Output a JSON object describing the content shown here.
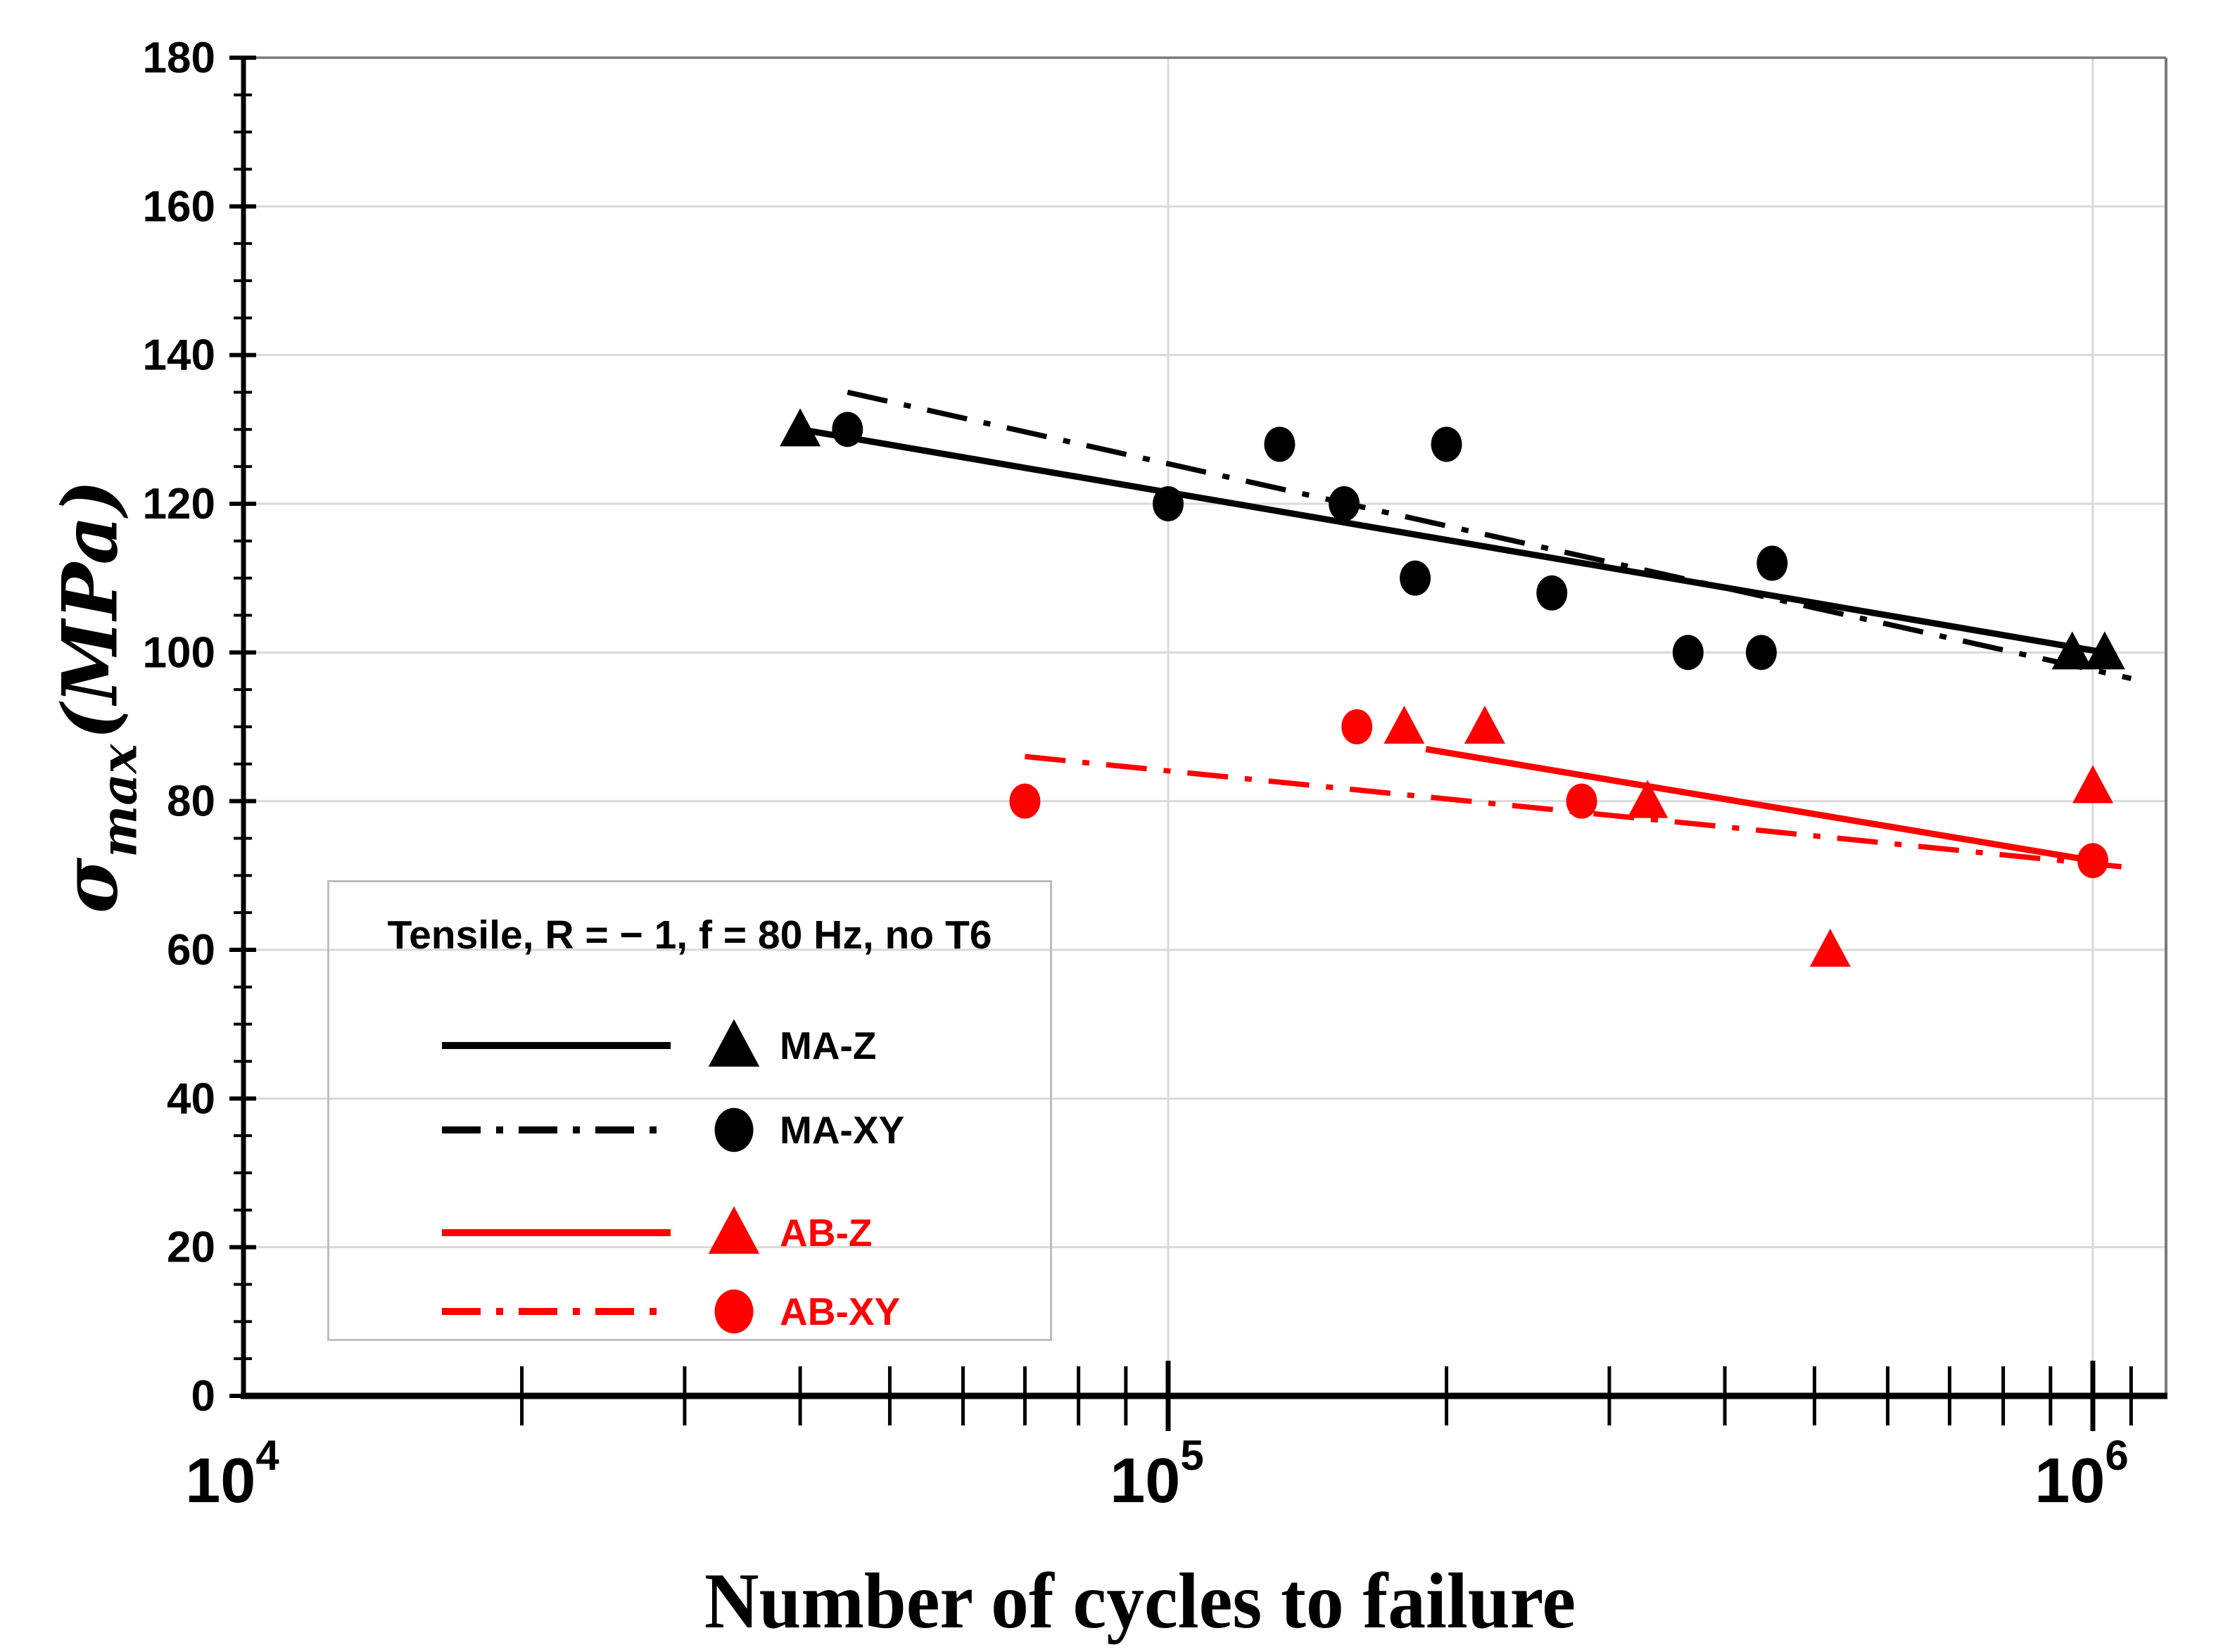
{
  "figure": {
    "x_axis_title": "Number of cycles to failure",
    "y_axis_title": {
      "sigma": "σ",
      "subscript": "max",
      "unit": "(MPa)"
    }
  },
  "legend": {
    "title": "Tensile, R = − 1, f = 80 Hz, no T6",
    "position": "lower-left",
    "transparent_background": true
  },
  "colors": {
    "black_series": "#000000",
    "red_series": "#ff0000",
    "gridline": "#d9d9d9",
    "spine_secondary": "#7a7a7a",
    "legend_border": "#bdbdbd"
  },
  "chart_data": {
    "type": "scatter",
    "x_scale": "log",
    "xlim": [
      10000,
      1200000
    ],
    "ylim": [
      0,
      180
    ],
    "y_major_step": 20,
    "y_minor_step": 5,
    "grid": {
      "y_values": [
        20,
        40,
        60,
        80,
        100,
        120,
        140,
        160
      ],
      "x_values": [
        100000,
        1000000
      ]
    },
    "y_tick_labels": [
      0,
      20,
      40,
      60,
      80,
      100,
      120,
      140,
      160,
      180
    ],
    "x_ticks": [
      {
        "value": 10000,
        "base": "10",
        "exp": "4"
      },
      {
        "value": 100000,
        "base": "10",
        "exp": "5"
      },
      {
        "value": 1000000,
        "base": "10",
        "exp": "6"
      }
    ],
    "xlabel": "Number of cycles to failure",
    "ylabel": "σmax (MPa)",
    "series": [
      {
        "name": "MA-Z",
        "color": "#000000",
        "marker": "triangle",
        "line": "solid",
        "points": [
          [
            40000,
            130
          ],
          [
            950000,
            100
          ],
          [
            1030000,
            100
          ]
        ],
        "fit_line": [
          [
            40000,
            130
          ],
          [
            1030000,
            100
          ]
        ]
      },
      {
        "name": "MA-XY",
        "color": "#000000",
        "marker": "circle",
        "line": "dashdot",
        "points": [
          [
            45000,
            130
          ],
          [
            100000,
            120
          ],
          [
            132000,
            128
          ],
          [
            155000,
            120
          ],
          [
            185000,
            110
          ],
          [
            200000,
            128
          ],
          [
            260000,
            108
          ],
          [
            365000,
            100
          ],
          [
            438000,
            100
          ],
          [
            450000,
            112
          ]
        ],
        "fit_line": [
          [
            45000,
            135
          ],
          [
            1100000,
            96.5
          ]
        ]
      },
      {
        "name": "AB-Z",
        "color": "#ff0000",
        "marker": "triangle",
        "line": "solid",
        "points": [
          [
            180000,
            90
          ],
          [
            220000,
            90
          ],
          [
            330000,
            80
          ],
          [
            520000,
            60
          ],
          [
            1000000,
            82
          ]
        ],
        "fit_line": [
          [
            190000,
            87
          ],
          [
            1000000,
            72
          ]
        ]
      },
      {
        "name": "AB-XY",
        "color": "#ff0000",
        "marker": "circle",
        "line": "dashdot",
        "points": [
          [
            70000,
            80
          ],
          [
            160000,
            90
          ],
          [
            280000,
            80
          ],
          [
            1000000,
            72
          ]
        ],
        "fit_line": [
          [
            70000,
            86
          ],
          [
            1110000,
            71
          ]
        ]
      }
    ]
  }
}
